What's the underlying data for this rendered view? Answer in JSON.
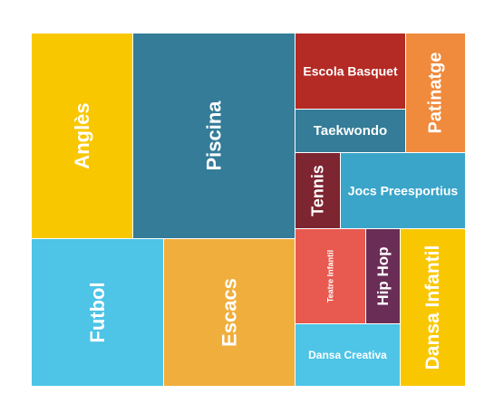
{
  "chart_data": {
    "type": "treemap",
    "title": "",
    "items": [
      {
        "label": "Anglès",
        "value": 235,
        "color": "#f9c700"
      },
      {
        "label": "Piscina",
        "value": 413,
        "color": "#347c98"
      },
      {
        "label": "Escola Basquet",
        "value": 103,
        "color": "#b42a24"
      },
      {
        "label": "Patinatge",
        "value": 84,
        "color": "#f08a3c"
      },
      {
        "label": "Taekwondo",
        "value": 62,
        "color": "#347c98"
      },
      {
        "label": "Tennis",
        "value": 42,
        "color": "#7d2530"
      },
      {
        "label": "Jocs Preesportius",
        "value": 105,
        "color": "#3aa5c9"
      },
      {
        "label": "Futbol",
        "value": 242,
        "color": "#4ec4e6"
      },
      {
        "label": "Escacs",
        "value": 241,
        "color": "#f0ae3c"
      },
      {
        "label": "Teatre Infantil",
        "value": 59,
        "color": "#e8594f"
      },
      {
        "label": "Hip Hop",
        "value": 31,
        "color": "#6a2d56"
      },
      {
        "label": "Dansa Infantil",
        "value": 111,
        "color": "#f9c700"
      },
      {
        "label": "Dansa Creativa",
        "value": 61,
        "color": "#4ec4e6"
      }
    ]
  }
}
